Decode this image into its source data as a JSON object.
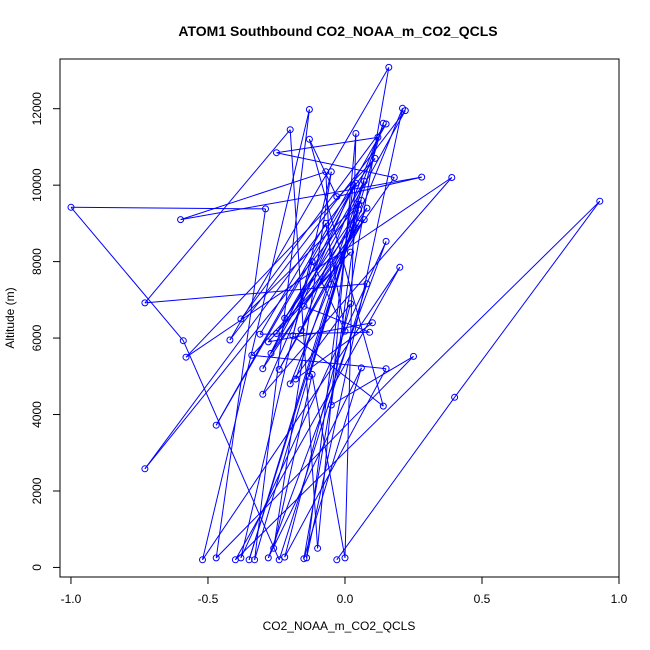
{
  "chart_data": {
    "type": "line",
    "title": "ATOM1 Southbound CO2_NOAA_m_CO2_QCLS",
    "xlabel": "CO2_NOAA_m_CO2_QCLS",
    "ylabel": "Altitude (m)",
    "xlim": [
      -1.04,
      1.0
    ],
    "ylim": [
      -250,
      13300
    ],
    "x_ticks": [
      -1.0,
      -0.5,
      0.0,
      0.5,
      1.0
    ],
    "x_tick_labels": [
      "-1.0",
      "-0.5",
      "0.0",
      "0.5",
      "1.0"
    ],
    "y_ticks": [
      0,
      2000,
      4000,
      6000,
      8000,
      10000,
      12000
    ],
    "y_tick_labels": [
      "0",
      "2000",
      "4000",
      "6000",
      "8000",
      "10000",
      "12000"
    ],
    "grid": false,
    "series_color": "#0000ff",
    "marker": "open-circle",
    "series": [
      {
        "points": [
          [
            -0.03,
            200
          ],
          [
            0.4,
            4450
          ],
          [
            0.93,
            9580
          ],
          [
            -0.4,
            200
          ],
          [
            0.2,
            7850
          ],
          [
            -0.52,
            200
          ],
          [
            -0.13,
            11980
          ],
          [
            -0.33,
            200
          ],
          [
            0.05,
            9500
          ],
          [
            -0.05,
            4250
          ],
          [
            0.25,
            5520
          ],
          [
            -0.47,
            250
          ],
          [
            -0.29,
            9380
          ],
          [
            -1.0,
            9420
          ],
          [
            -0.59,
            5930
          ],
          [
            -0.24,
            200
          ],
          [
            0.08,
            7420
          ],
          [
            -0.73,
            6920
          ],
          [
            -0.2,
            11450
          ],
          [
            -0.1,
            500
          ],
          [
            0.04,
            11350
          ],
          [
            0.0,
            250
          ],
          [
            -0.12,
            5050
          ],
          [
            -0.26,
            500
          ],
          [
            -0.05,
            10350
          ],
          [
            -0.38,
            250
          ],
          [
            0.15,
            8530
          ],
          [
            -0.28,
            250
          ],
          [
            0.06,
            5220
          ],
          [
            -0.15,
            230
          ],
          [
            0.16,
            13080
          ],
          [
            -0.42,
            5950
          ],
          [
            0.22,
            11950
          ],
          [
            -0.27,
            5600
          ],
          [
            0.18,
            10200
          ],
          [
            -0.25,
            10850
          ],
          [
            0.12,
            11250
          ],
          [
            -0.16,
            6220
          ],
          [
            0.05,
            9000
          ],
          [
            -0.3,
            5200
          ],
          [
            0.04,
            10050
          ],
          [
            -0.47,
            3720
          ],
          [
            0.15,
            11600
          ],
          [
            -0.38,
            6500
          ],
          [
            0.06,
            9600
          ],
          [
            -0.73,
            2580
          ],
          [
            0.11,
            10700
          ],
          [
            -0.58,
            5500
          ],
          [
            0.39,
            10200
          ],
          [
            -0.3,
            4530
          ],
          [
            0.03,
            10000
          ],
          [
            -0.14,
            250
          ],
          [
            0.21,
            12010
          ],
          [
            -0.2,
            4800
          ],
          [
            0.02,
            6900
          ],
          [
            -0.22,
            270
          ],
          [
            0.15,
            5200
          ],
          [
            -0.34,
            5550
          ],
          [
            0.02,
            8250
          ],
          [
            -0.28,
            5900
          ],
          [
            0.1,
            6400
          ],
          [
            -0.18,
            4930
          ],
          [
            0.14,
            11620
          ],
          [
            -0.13,
            5000
          ],
          [
            0.03,
            8950
          ],
          [
            -0.35,
            200
          ],
          [
            0.07,
            10100
          ],
          [
            -0.25,
            6120
          ],
          [
            0.07,
            9100
          ],
          [
            -0.24,
            5180
          ],
          [
            0.08,
            9400
          ],
          [
            -0.22,
            6520
          ],
          [
            0.05,
            9350
          ],
          [
            -0.15,
            6830
          ],
          [
            0.09,
            6150
          ],
          [
            -0.31,
            6100
          ],
          [
            -0.07,
            9000
          ],
          [
            0.0,
            6180
          ],
          [
            -0.12,
            8000
          ],
          [
            -0.19,
            6060
          ],
          [
            0.14,
            4220
          ],
          [
            -0.13,
            11200
          ],
          [
            -0.03,
            9700
          ],
          [
            0.28,
            10210
          ],
          [
            -0.6,
            9100
          ],
          [
            -0.07,
            10350
          ],
          [
            -0.05,
            7400
          ]
        ]
      }
    ]
  }
}
